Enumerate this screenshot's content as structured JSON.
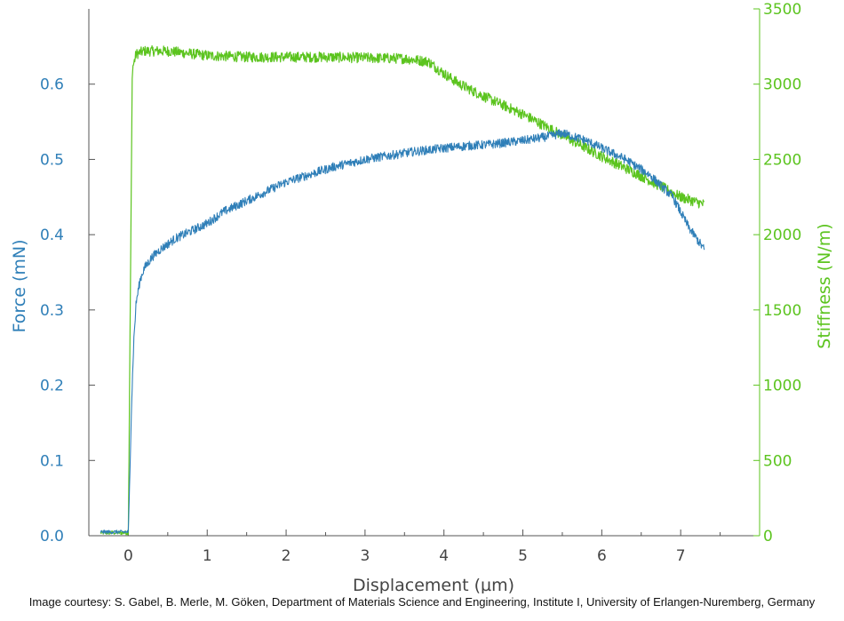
{
  "chart_data": {
    "type": "line",
    "xlabel": "Displacement (µm)",
    "ylabel_left": "Force (mN)",
    "ylabel_right": "Stiffness (N/m)",
    "xlim": [
      -0.5,
      8.0
    ],
    "ylim_left": [
      0.0,
      0.7
    ],
    "ylim_right": [
      0,
      3500
    ],
    "x_ticks": [
      "0",
      "1",
      "2",
      "3",
      "4",
      "5",
      "6",
      "7"
    ],
    "y_ticks_left": [
      "0.0",
      "0.1",
      "0.2",
      "0.3",
      "0.4",
      "0.5",
      "0.6"
    ],
    "y_ticks_right": [
      "0",
      "500",
      "1000",
      "1500",
      "2000",
      "2500",
      "3000",
      "3500"
    ],
    "grid": false,
    "colors": {
      "force": "#2f7fb8",
      "stiffness": "#5cc41f",
      "axis": "#555555",
      "xlabel": "#444444"
    },
    "series": [
      {
        "axis": "left",
        "x": [
          -0.35,
          0.0,
          0.02,
          0.04,
          0.07,
          0.1,
          0.15,
          0.2,
          0.3,
          0.4,
          0.6,
          0.8,
          1.0,
          1.2,
          1.5,
          1.8,
          2.0,
          2.3,
          2.6,
          3.0,
          3.3,
          3.6,
          4.0,
          4.3,
          4.6,
          5.0,
          5.3,
          5.5,
          5.8,
          6.0,
          6.3,
          6.6,
          6.9,
          7.1,
          7.3
        ],
        "y": [
          0.005,
          0.005,
          0.08,
          0.17,
          0.26,
          0.31,
          0.34,
          0.355,
          0.37,
          0.38,
          0.395,
          0.405,
          0.415,
          0.43,
          0.445,
          0.46,
          0.47,
          0.48,
          0.49,
          0.5,
          0.505,
          0.51,
          0.515,
          0.518,
          0.52,
          0.525,
          0.53,
          0.535,
          0.525,
          0.515,
          0.5,
          0.48,
          0.45,
          0.41,
          0.38
        ]
      },
      {
        "axis": "right",
        "x": [
          -0.35,
          0.0,
          0.02,
          0.05,
          0.1,
          0.2,
          0.5,
          1.0,
          1.5,
          2.0,
          2.5,
          3.0,
          3.5,
          3.8,
          4.0,
          4.2,
          4.5,
          5.0,
          5.5,
          6.0,
          6.5,
          7.0,
          7.3
        ],
        "y": [
          20,
          20,
          1200,
          3100,
          3200,
          3220,
          3220,
          3190,
          3180,
          3180,
          3180,
          3175,
          3170,
          3150,
          3070,
          3000,
          2920,
          2800,
          2660,
          2520,
          2390,
          2250,
          2200
        ]
      }
    ]
  },
  "caption": "Image courtesy: S. Gabel, B. Merle, M. Göken, Department of Materials Science and Engineering, Institute I, University of Erlangen-Nuremberg, Germany"
}
